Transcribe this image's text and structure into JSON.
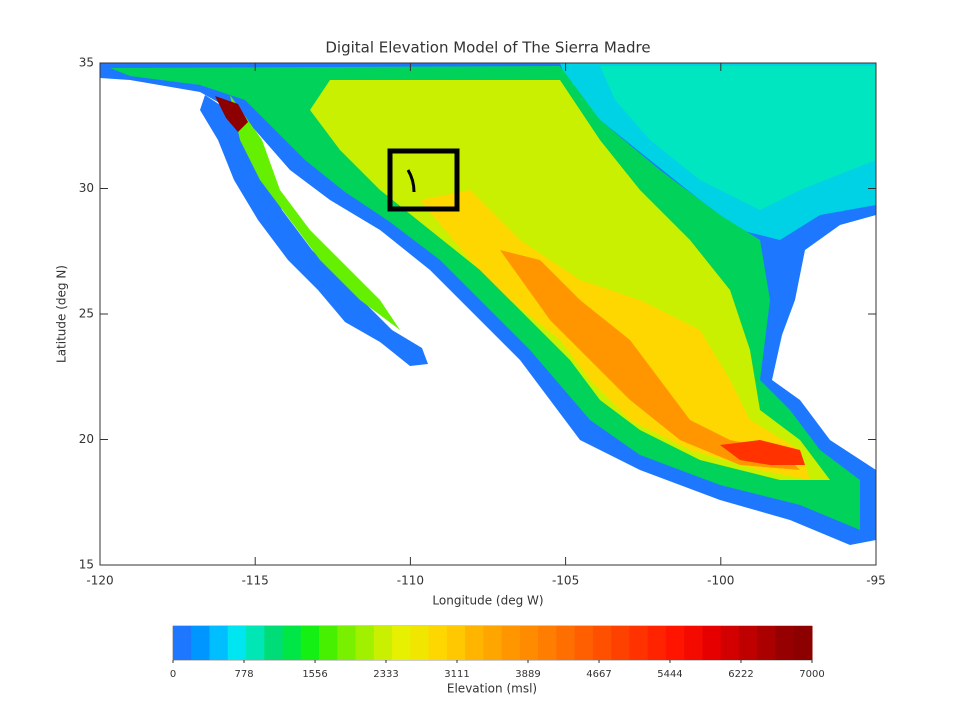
{
  "title": "Digital Elevation Model of The Sierra Madre",
  "x_axis": {
    "label": "Longitude (deg W)",
    "lim": [
      -120,
      -95
    ],
    "ticks": [
      -120,
      -115,
      -110,
      -105,
      -100,
      -95
    ]
  },
  "y_axis": {
    "label": "Latitude (deg N)",
    "lim": [
      15,
      35
    ],
    "ticks": [
      15,
      20,
      25,
      30,
      35
    ]
  },
  "colorbar": {
    "label": "Elevation (msl)",
    "lim": [
      0,
      7000
    ],
    "ticks": [
      0,
      778,
      1556,
      2333,
      3111,
      3889,
      4667,
      5444,
      6222,
      7000
    ],
    "colors": [
      "#1e78ff",
      "#0096ff",
      "#00beff",
      "#00e6f0",
      "#00e6b4",
      "#00dc78",
      "#00e646",
      "#14f014",
      "#46f000",
      "#78f000",
      "#a0f000",
      "#c8f000",
      "#e6f000",
      "#f0e600",
      "#ffd700",
      "#ffc800",
      "#ffb400",
      "#ffa500",
      "#ff9600",
      "#ff8c00",
      "#ff7d00",
      "#ff6e00",
      "#ff5f00",
      "#ff5000",
      "#ff4100",
      "#ff3200",
      "#ff2300",
      "#ff1400",
      "#f50a00",
      "#e60000",
      "#d20000",
      "#be0000",
      "#aa0000",
      "#960000",
      "#8c0000"
    ]
  }
}
